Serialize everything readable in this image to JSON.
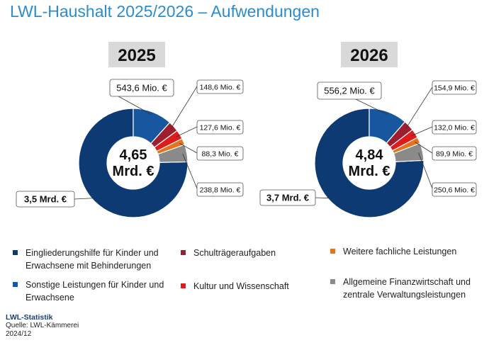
{
  "title": "LWL-Haushalt 2025/2026 – Aufwendungen",
  "colors": {
    "Eingliederungshilfe": "#0d3a73",
    "Sonstige": "#17579f",
    "Schultraeger": "#9d1e2e",
    "Kultur": "#de1c1c",
    "Weitere": "#e4731b",
    "Allgemeine": "#8a8a8a"
  },
  "chart_data": [
    {
      "type": "pie",
      "donut": true,
      "title": "2025",
      "center_label": [
        "4,65",
        "Mrd. €"
      ],
      "slices": [
        {
          "key": "Eingliederungshilfe",
          "label": "3,5 Mrd. €",
          "value": 3500
        },
        {
          "key": "Sonstige",
          "label": "543,6 Mio. €",
          "value": 543.6
        },
        {
          "key": "Schultraeger",
          "label": "148,6 Mio. €",
          "value": 148.6
        },
        {
          "key": "Kultur",
          "label": "127,6 Mio. €",
          "value": 127.6
        },
        {
          "key": "Weitere",
          "label": "88,3 Mio. €",
          "value": 88.3
        },
        {
          "key": "Allgemeine",
          "label": "238,8 Mio. €",
          "value": 238.8
        }
      ]
    },
    {
      "type": "pie",
      "donut": true,
      "title": "2026",
      "center_label": [
        "4,84",
        "Mrd. €"
      ],
      "slices": [
        {
          "key": "Eingliederungshilfe",
          "label": "3,7 Mrd. €",
          "value": 3700
        },
        {
          "key": "Sonstige",
          "label": "556,2 Mio. €",
          "value": 556.2
        },
        {
          "key": "Schultraeger",
          "label": "154,9 Mio. €",
          "value": 154.9
        },
        {
          "key": "Kultur",
          "label": "132,0 Mio. €",
          "value": 132.0
        },
        {
          "key": "Weitere",
          "label": "89,9 Mio. €",
          "value": 89.9
        },
        {
          "key": "Allgemeine",
          "label": "250,6 Mio. €",
          "value": 250.6
        }
      ]
    }
  ],
  "legend": [
    {
      "key": "Eingliederungshilfe",
      "label": "Eingliederungshilfe für Kinder und Erwachsene mit Behinderungen"
    },
    {
      "key": "Schultraeger",
      "label": "Schulträgeraufgaben"
    },
    {
      "key": "Weitere",
      "label": "Weitere fachliche Leistungen"
    },
    {
      "key": "Sonstige",
      "label": "Sonstige Leistungen für Kinder und Erwachsene"
    },
    {
      "key": "Kultur",
      "label": "Kultur und Wissenschaft"
    },
    {
      "key": "Allgemeine",
      "label": "Allgemeine Finanzwirtschaft und zentrale Verwaltungsleistungen"
    }
  ],
  "footer": {
    "brand": "LWL-Statistik",
    "source": "Quelle: LWL-Kämmerei",
    "date": "2024/12"
  }
}
